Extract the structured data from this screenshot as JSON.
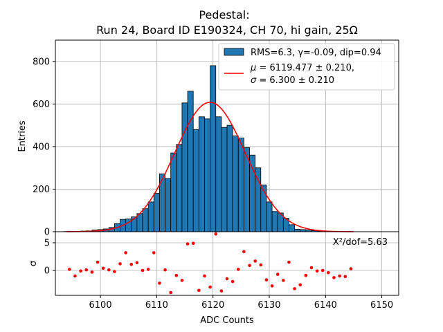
{
  "chart_data": [
    {
      "type": "bar",
      "panel": "main",
      "title_line1": "Pedestal:",
      "title_line2": "Run 24, Board ID E190324, CH 70, hi gain, 25Ω",
      "xlabel": "ADC Counts",
      "ylabel": "Entries",
      "xlim": [
        6092,
        6153
      ],
      "ylim": [
        0,
        900
      ],
      "xticks": [
        6100,
        6110,
        6120,
        6130,
        6140,
        6150
      ],
      "yticks": [
        0,
        200,
        400,
        600,
        800
      ],
      "grid": true,
      "legend_position": "top-right",
      "bar_color": "#1f77b4",
      "bin_width": 1,
      "bins": [
        {
          "x": 6094,
          "y": 1
        },
        {
          "x": 6095,
          "y": 1
        },
        {
          "x": 6096,
          "y": 2
        },
        {
          "x": 6097,
          "y": 3
        },
        {
          "x": 6098,
          "y": 4
        },
        {
          "x": 6099,
          "y": 8
        },
        {
          "x": 6100,
          "y": 10
        },
        {
          "x": 6101,
          "y": 13
        },
        {
          "x": 6102,
          "y": 20
        },
        {
          "x": 6103,
          "y": 38
        },
        {
          "x": 6104,
          "y": 58
        },
        {
          "x": 6105,
          "y": 60
        },
        {
          "x": 6106,
          "y": 70
        },
        {
          "x": 6107,
          "y": 85
        },
        {
          "x": 6108,
          "y": 108
        },
        {
          "x": 6109,
          "y": 140
        },
        {
          "x": 6110,
          "y": 180
        },
        {
          "x": 6111,
          "y": 272
        },
        {
          "x": 6112,
          "y": 250
        },
        {
          "x": 6113,
          "y": 370
        },
        {
          "x": 6114,
          "y": 410
        },
        {
          "x": 6115,
          "y": 605
        },
        {
          "x": 6116,
          "y": 660
        },
        {
          "x": 6117,
          "y": 480
        },
        {
          "x": 6118,
          "y": 540
        },
        {
          "x": 6119,
          "y": 530
        },
        {
          "x": 6120,
          "y": 780
        },
        {
          "x": 6121,
          "y": 540
        },
        {
          "x": 6122,
          "y": 490
        },
        {
          "x": 6123,
          "y": 500
        },
        {
          "x": 6124,
          "y": 450
        },
        {
          "x": 6125,
          "y": 440
        },
        {
          "x": 6126,
          "y": 395
        },
        {
          "x": 6127,
          "y": 360
        },
        {
          "x": 6128,
          "y": 300
        },
        {
          "x": 6129,
          "y": 220
        },
        {
          "x": 6130,
          "y": 140
        },
        {
          "x": 6131,
          "y": 95
        },
        {
          "x": 6132,
          "y": 88
        },
        {
          "x": 6133,
          "y": 63
        },
        {
          "x": 6134,
          "y": 33
        },
        {
          "x": 6135,
          "y": 12
        },
        {
          "x": 6136,
          "y": 10
        },
        {
          "x": 6137,
          "y": 8
        },
        {
          "x": 6138,
          "y": 5
        },
        {
          "x": 6139,
          "y": 3
        },
        {
          "x": 6140,
          "y": 2
        },
        {
          "x": 6141,
          "y": 1
        },
        {
          "x": 6142,
          "y": 1
        },
        {
          "x": 6143,
          "y": 1
        },
        {
          "x": 6144,
          "y": 1
        }
      ],
      "fit": {
        "mu": 6119.477,
        "sigma": 6.3,
        "amplitude": 608,
        "x_range": [
          6094,
          6145
        ],
        "color": "#ff0000"
      },
      "legend": {
        "hist_label": "RMS=6.3, γ=-0.09, dip=0.94",
        "fit_mu_symbol": "μ",
        "fit_mu_text": " = 6119.477 ± 0.210,",
        "fit_sigma_symbol": "σ",
        "fit_sigma_text": " = 6.300 ± 0.210"
      }
    },
    {
      "type": "scatter",
      "panel": "residuals",
      "ylabel": "σ",
      "xlabel": "ADC Counts",
      "ylim": [
        -4.5,
        7
      ],
      "yticks": [
        0,
        5
      ],
      "annotation": "X²/dof=5.63",
      "point_color": "#ff0000",
      "points": [
        {
          "x": 6094.5,
          "y": 0.2
        },
        {
          "x": 6095.5,
          "y": -1.0
        },
        {
          "x": 6096.5,
          "y": -0.1
        },
        {
          "x": 6097.5,
          "y": 0.1
        },
        {
          "x": 6098.5,
          "y": -0.3
        },
        {
          "x": 6099.5,
          "y": 1.5
        },
        {
          "x": 6100.5,
          "y": 0.4
        },
        {
          "x": 6101.5,
          "y": 0.1
        },
        {
          "x": 6102.5,
          "y": -0.2
        },
        {
          "x": 6103.5,
          "y": 1.2
        },
        {
          "x": 6104.5,
          "y": 3.2
        },
        {
          "x": 6105.5,
          "y": 1.1
        },
        {
          "x": 6106.5,
          "y": 1.4
        },
        {
          "x": 6107.5,
          "y": 0.0
        },
        {
          "x": 6108.5,
          "y": 0.2
        },
        {
          "x": 6109.5,
          "y": 3.2
        },
        {
          "x": 6110.5,
          "y": -2.3
        },
        {
          "x": 6111.5,
          "y": 0.1
        },
        {
          "x": 6112.5,
          "y": -4.0
        },
        {
          "x": 6113.5,
          "y": -0.9
        },
        {
          "x": 6114.5,
          "y": -1.8
        },
        {
          "x": 6115.5,
          "y": 4.8
        },
        {
          "x": 6116.5,
          "y": 4.9
        },
        {
          "x": 6117.5,
          "y": -3.6
        },
        {
          "x": 6118.5,
          "y": -1.0
        },
        {
          "x": 6119.5,
          "y": -3.0
        },
        {
          "x": 6120.5,
          "y": 6.6
        },
        {
          "x": 6121.5,
          "y": -3.7
        },
        {
          "x": 6122.5,
          "y": -1.5
        },
        {
          "x": 6123.5,
          "y": -2.0
        },
        {
          "x": 6124.5,
          "y": 0.2
        },
        {
          "x": 6125.5,
          "y": 3.4
        },
        {
          "x": 6126.5,
          "y": 0.9
        },
        {
          "x": 6127.5,
          "y": 1.7
        },
        {
          "x": 6128.5,
          "y": 1.0
        },
        {
          "x": 6129.5,
          "y": -1.7
        },
        {
          "x": 6130.5,
          "y": -2.8
        },
        {
          "x": 6131.5,
          "y": -0.7
        },
        {
          "x": 6132.5,
          "y": -1.8
        },
        {
          "x": 6133.5,
          "y": 1.5
        },
        {
          "x": 6134.5,
          "y": -3.3
        },
        {
          "x": 6135.5,
          "y": -2.6
        },
        {
          "x": 6136.5,
          "y": -0.9
        },
        {
          "x": 6137.5,
          "y": 0.5
        },
        {
          "x": 6138.5,
          "y": -0.1
        },
        {
          "x": 6139.5,
          "y": 0.0
        },
        {
          "x": 6140.5,
          "y": -0.4
        },
        {
          "x": 6141.5,
          "y": -1.3
        },
        {
          "x": 6142.5,
          "y": -1.0
        },
        {
          "x": 6143.5,
          "y": -1.1
        },
        {
          "x": 6144.5,
          "y": 0.3
        }
      ]
    }
  ]
}
